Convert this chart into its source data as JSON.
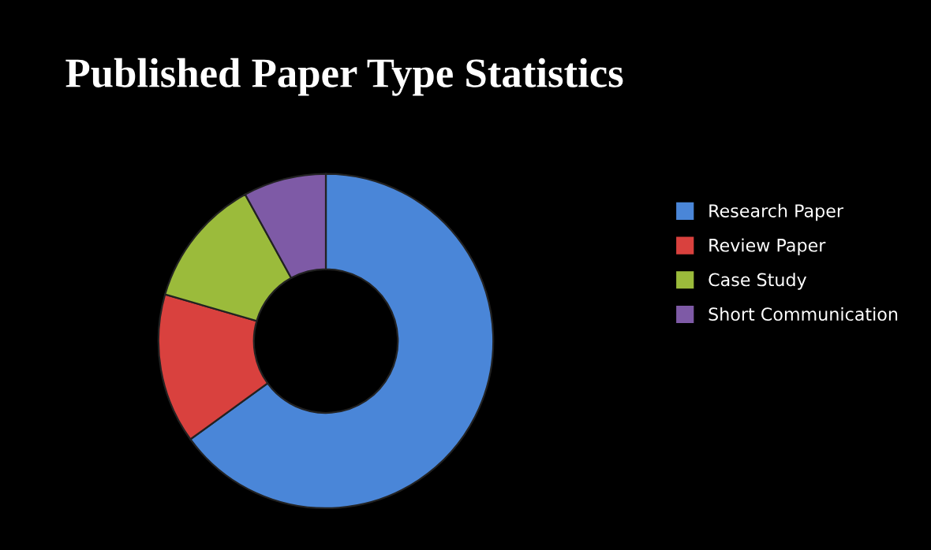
{
  "chart_data": {
    "type": "donut",
    "title": "Published Paper Type Statistics",
    "categories": [
      "Research Paper",
      "Review Paper",
      "Case Study",
      "Short Communication"
    ],
    "values": [
      65,
      14.5,
      12.5,
      8
    ],
    "colors": [
      "#4a86d8",
      "#d9413e",
      "#9bbb3b",
      "#7e5aa6"
    ],
    "legend": "right"
  }
}
